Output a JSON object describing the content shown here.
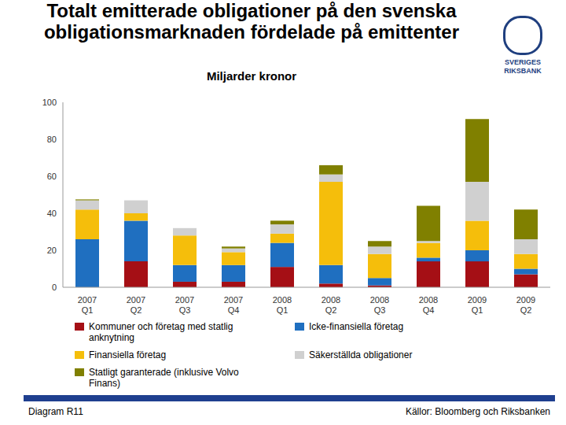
{
  "chart_data": {
    "type": "bar",
    "title": "Totalt emitterade obligationer på den svenska obligationsmarknaden fördelade på emittenter",
    "subtitle": "Miljarder kronor",
    "logo": "SVERIGES RIKSBANK",
    "footer_left": "Diagram R11",
    "footer_right": "Källor: Bloomberg och Riksbanken",
    "categories": [
      "2007 Q1",
      "2007 Q2",
      "2007 Q3",
      "2007 Q4",
      "2008 Q1",
      "2008 Q2",
      "2008 Q3",
      "2008 Q4",
      "2009 Q1",
      "2009 Q2"
    ],
    "stacked": true,
    "grid": false,
    "ylim": [
      0,
      100
    ],
    "yticks": [
      0,
      20,
      40,
      60,
      80,
      100
    ],
    "series": [
      {
        "name": "Kommuner och företag med statlig anknytning",
        "color": "#a50f15",
        "values": [
          0,
          14,
          3,
          3,
          11,
          2,
          1,
          14,
          14,
          7
        ]
      },
      {
        "name": "Icke-finansiella företag",
        "color": "#1f6fc0",
        "values": [
          26,
          22,
          9,
          9,
          13,
          10,
          4,
          2,
          6,
          3
        ]
      },
      {
        "name": "Finansiella företag",
        "color": "#f5be0b",
        "values": [
          16,
          4,
          16,
          7,
          5,
          45,
          13,
          8,
          16,
          8
        ]
      },
      {
        "name": "Säkerställda obligationer",
        "color": "#d0d0d0",
        "values": [
          5,
          7,
          4,
          2,
          5,
          4,
          4,
          1,
          21,
          8
        ]
      },
      {
        "name": "Statligt garanterade (inklusive Volvo Finans)",
        "color": "#808000",
        "values": [
          0.5,
          0,
          0,
          1,
          2,
          5,
          3,
          19,
          34,
          16
        ]
      }
    ]
  }
}
